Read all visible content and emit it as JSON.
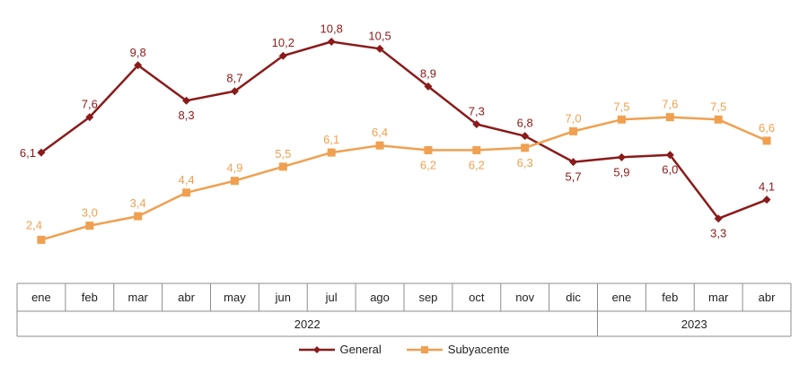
{
  "chart_data": {
    "type": "line",
    "categories": [
      "ene",
      "feb",
      "mar",
      "abr",
      "may",
      "jun",
      "jul",
      "ago",
      "sep",
      "oct",
      "nov",
      "dic",
      "ene",
      "feb",
      "mar",
      "abr"
    ],
    "year_groups": [
      {
        "label": "2022",
        "span": 12
      },
      {
        "label": "2023",
        "span": 4
      }
    ],
    "series": [
      {
        "name": "General",
        "color": "#8b1a1a",
        "marker": "diamond",
        "values": [
          6.1,
          7.6,
          9.8,
          8.3,
          8.7,
          10.2,
          10.8,
          10.5,
          8.9,
          7.3,
          6.8,
          5.7,
          5.9,
          6.0,
          3.3,
          4.1
        ],
        "labels": [
          "6,1",
          "7,6",
          "9,8",
          "8,3",
          "8,7",
          "10,2",
          "10,8",
          "10,5",
          "8,9",
          "7,3",
          "6,8",
          "5,7",
          "5,9",
          "6,0",
          "3,3",
          "4,1"
        ]
      },
      {
        "name": "Subyacente",
        "color": "#f0a050",
        "marker": "square",
        "values": [
          2.4,
          3.0,
          3.4,
          4.4,
          4.9,
          5.5,
          6.1,
          6.4,
          6.2,
          6.2,
          6.3,
          7.0,
          7.5,
          7.6,
          7.5,
          6.6
        ],
        "labels": [
          "2,4",
          "3,0",
          "3,4",
          "4,4",
          "4,9",
          "5,5",
          "6,1",
          "6,4",
          "6,2",
          "6,2",
          "6,3",
          "7,0",
          "7,5",
          "7,6",
          "7,5",
          "6,6"
        ]
      }
    ],
    "ylim": [
      0,
      12
    ],
    "grid": false,
    "legend_position": "bottom"
  }
}
